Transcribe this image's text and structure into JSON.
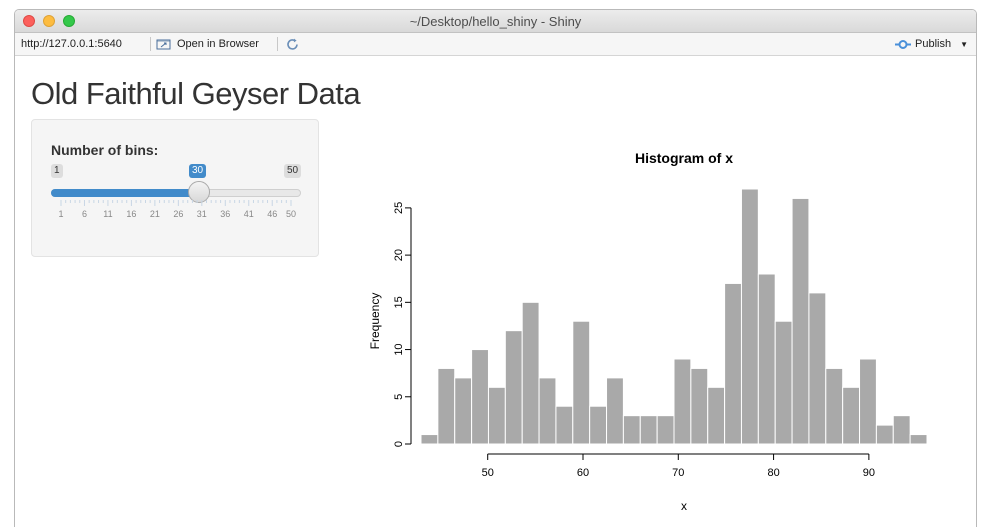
{
  "window": {
    "title": "~/Desktop/hello_shiny - Shiny"
  },
  "toolbar": {
    "url": "http://127.0.0.1:5640",
    "open_in_browser": "Open in Browser",
    "publish": "Publish"
  },
  "page": {
    "title": "Old Faithful Geyser Data"
  },
  "slider": {
    "label": "Number of bins:",
    "min": 1,
    "max": 50,
    "value": 30,
    "min_label": "1",
    "max_label": "50",
    "value_label": "30",
    "tick_labels": [
      "1",
      "6",
      "11",
      "16",
      "21",
      "26",
      "31",
      "36",
      "41",
      "46",
      "50"
    ],
    "accent": "#428bca"
  },
  "chart_data": {
    "type": "bar",
    "title": "Histogram of x",
    "xlabel": "x",
    "ylabel": "Frequency",
    "bin_start": 43,
    "bin_width": 1.77,
    "values": [
      1,
      8,
      7,
      10,
      6,
      12,
      15,
      7,
      4,
      13,
      4,
      7,
      3,
      3,
      3,
      9,
      8,
      6,
      17,
      27,
      18,
      13,
      26,
      16,
      8,
      6,
      9,
      2,
      3,
      1
    ],
    "xticks": [
      50,
      60,
      70,
      80,
      90
    ],
    "yticks": [
      0,
      5,
      10,
      15,
      20,
      25
    ],
    "ylim": [
      0,
      27
    ],
    "bar_color": "#a9a9a9"
  }
}
